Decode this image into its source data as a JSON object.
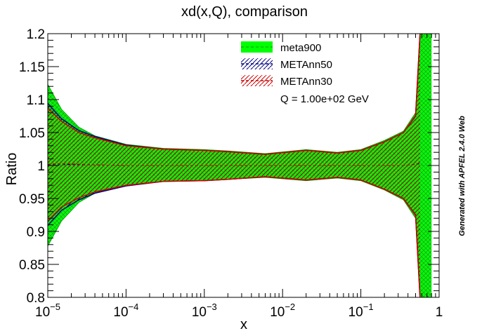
{
  "chart_data": {
    "type": "area",
    "title": "xd(x,Q), comparison",
    "xlabel": "x",
    "ylabel": "Ratio",
    "x_scale": "log",
    "xlim": [
      1e-05,
      1
    ],
    "ylim": [
      0.8,
      1.2
    ],
    "x_ticks": [
      {
        "label_base": "10",
        "label_exp": "−5"
      },
      {
        "label_base": "10",
        "label_exp": "−4"
      },
      {
        "label_base": "10",
        "label_exp": "−3"
      },
      {
        "label_base": "10",
        "label_exp": "−2"
      },
      {
        "label_base": "10",
        "label_exp": "−1"
      },
      {
        "label_base": "1",
        "label_exp": ""
      }
    ],
    "x_tick_values": [
      1e-05,
      0.0001,
      0.001,
      0.01,
      0.1,
      1
    ],
    "y_ticks": [
      "0.8",
      "0.85",
      "0.9",
      "0.95",
      "1",
      "1.05",
      "1.1",
      "1.15",
      "1.2"
    ],
    "y_tick_values": [
      0.8,
      0.85,
      0.9,
      0.95,
      1.0,
      1.05,
      1.1,
      1.15,
      1.2
    ],
    "legend": {
      "placement": "top-right",
      "entries": [
        "meta900",
        "METAnn50",
        "METAnn30"
      ],
      "note": "Q = 1.00e+02 GeV"
    },
    "series": [
      {
        "name": "meta900",
        "style": "filled band",
        "color": "#00ff00",
        "x": [
          1e-05,
          1.5e-05,
          2.5e-05,
          4e-05,
          0.0001,
          0.0003,
          0.001,
          0.002,
          0.006,
          0.02,
          0.05,
          0.1,
          0.2,
          0.35,
          0.5,
          0.57,
          0.62,
          0.7,
          0.8
        ],
        "central": [
          1.0,
          1.0,
          1.001,
          1.001,
          1.0,
          1.0,
          1.0,
          1.0,
          1.0,
          1.0,
          1.0,
          1.0,
          1.0,
          1.0,
          1.001,
          1.002,
          1.0,
          1.0,
          1.0
        ],
        "upper": [
          1.123,
          1.085,
          1.058,
          1.045,
          1.032,
          1.026,
          1.024,
          1.022,
          1.018,
          1.024,
          1.02,
          1.024,
          1.038,
          1.052,
          1.08,
          1.2,
          1.2,
          1.2,
          1.2
        ],
        "lower": [
          0.878,
          0.916,
          0.944,
          0.958,
          0.969,
          0.976,
          0.977,
          0.979,
          0.982,
          0.977,
          0.981,
          0.977,
          0.963,
          0.948,
          0.92,
          0.8,
          0.8,
          0.8,
          0.8
        ]
      },
      {
        "name": "METAnn50",
        "style": "hatched band",
        "color": "#000080",
        "x": [
          1e-05,
          1.5e-05,
          2.5e-05,
          4e-05,
          0.0001,
          0.0003,
          0.001,
          0.002,
          0.006,
          0.02,
          0.05,
          0.1,
          0.2,
          0.35,
          0.5,
          0.57
        ],
        "central": [
          1.001,
          1.002,
          1.001,
          1.001,
          1.0,
          1.0,
          1.0,
          1.0,
          1.0,
          1.0,
          1.0,
          1.0,
          1.0,
          1.0,
          1.002,
          1.003
        ],
        "upper": [
          1.094,
          1.071,
          1.053,
          1.044,
          1.031,
          1.025,
          1.023,
          1.021,
          1.017,
          1.023,
          1.019,
          1.023,
          1.036,
          1.05,
          1.075,
          1.2
        ],
        "lower": [
          0.909,
          0.932,
          0.948,
          0.958,
          0.969,
          0.976,
          0.977,
          0.979,
          0.983,
          0.978,
          0.982,
          0.978,
          0.964,
          0.95,
          0.925,
          0.8
        ]
      },
      {
        "name": "METAnn30",
        "style": "hatched band",
        "color": "#cc0000",
        "x": [
          1e-05,
          1.5e-05,
          2.5e-05,
          4e-05,
          0.0001,
          0.0003,
          0.001,
          0.002,
          0.006,
          0.02,
          0.05,
          0.1,
          0.2,
          0.35,
          0.5,
          0.57
        ],
        "central": [
          1.002,
          1.003,
          1.002,
          1.001,
          1.0,
          1.0,
          1.0,
          1.0,
          1.0,
          1.0,
          1.0,
          1.0,
          1.0,
          1.0,
          1.002,
          1.004
        ],
        "upper": [
          1.087,
          1.067,
          1.05,
          1.042,
          1.03,
          1.025,
          1.023,
          1.021,
          1.017,
          1.023,
          1.019,
          1.023,
          1.036,
          1.05,
          1.076,
          1.2
        ],
        "lower": [
          0.916,
          0.937,
          0.951,
          0.96,
          0.97,
          0.976,
          0.977,
          0.979,
          0.983,
          0.978,
          0.982,
          0.978,
          0.964,
          0.95,
          0.924,
          0.8
        ]
      }
    ],
    "side_note": "Generated with APFEL 2.4.0 Web",
    "grid": false
  }
}
